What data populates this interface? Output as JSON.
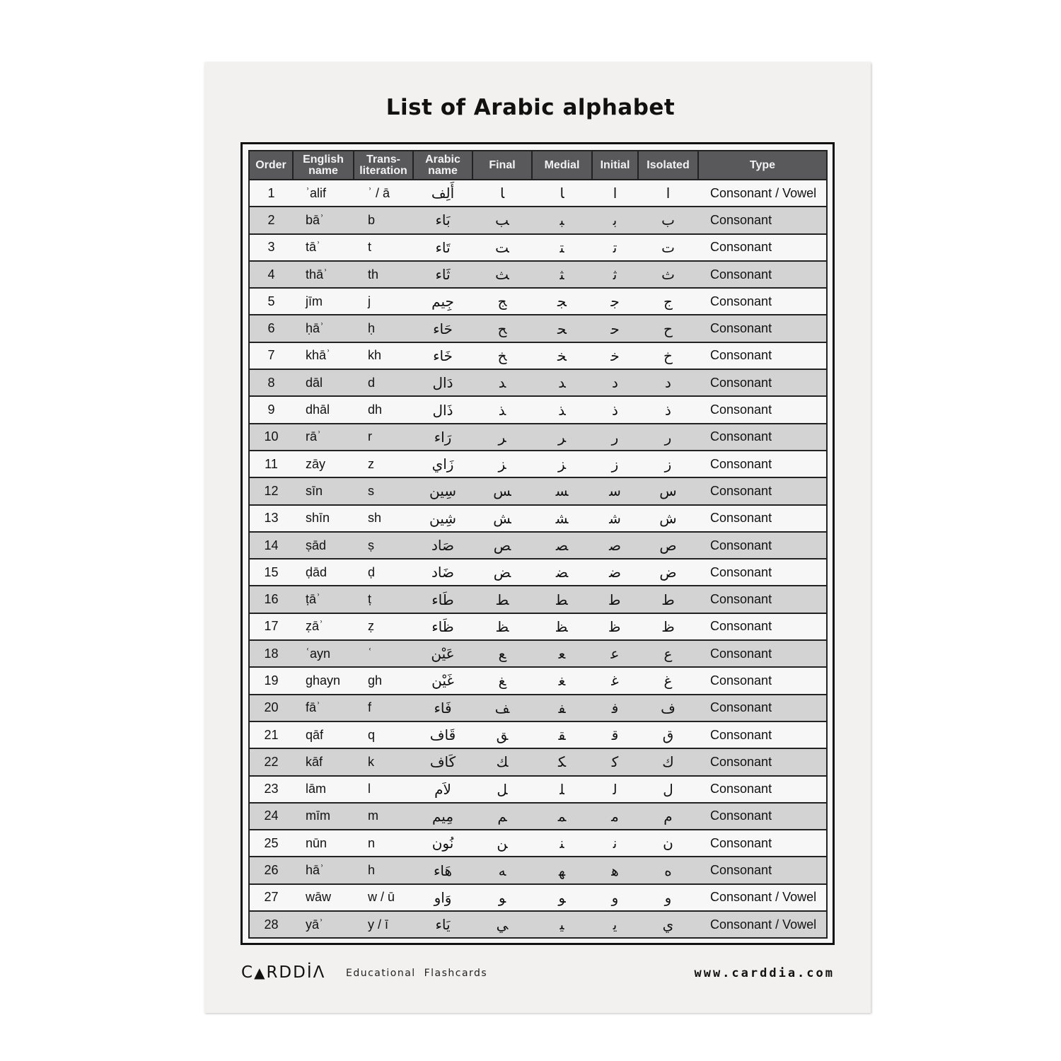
{
  "title": "List of Arabic alphabet",
  "columns": [
    "Order",
    "English name",
    "Trans-literation",
    "Arabic name",
    "Final",
    "Medial",
    "Initial",
    "Isolated",
    "Type"
  ],
  "header_labels": {
    "order": "Order",
    "english": "English\nname",
    "translit": "Trans-\nliteration",
    "arabic": "Arabic\nname",
    "final": "Final",
    "medial": "Medial",
    "initial": "Initial",
    "isolated": "Isolated",
    "type": "Type"
  },
  "rows": [
    {
      "order": "1",
      "english": "ʾalif",
      "translit": "ʾ / ā",
      "arabic": "أَلِف",
      "final": "‍ا",
      "medial": "‍ا",
      "initial": "ا",
      "isolated": "ا",
      "type": "Consonant / Vowel"
    },
    {
      "order": "2",
      "english": "bāʾ",
      "translit": "b",
      "arabic": "بَاء",
      "final": "‍ب",
      "medial": "‍ب‍",
      "initial": "ب‍",
      "isolated": "ب",
      "type": "Consonant"
    },
    {
      "order": "3",
      "english": "tāʾ",
      "translit": "t",
      "arabic": "تَاء",
      "final": "‍ت",
      "medial": "‍ت‍",
      "initial": "ت‍",
      "isolated": "ت",
      "type": "Consonant"
    },
    {
      "order": "4",
      "english": "thāʾ",
      "translit": "th",
      "arabic": "ثَاء",
      "final": "‍ث",
      "medial": "‍ث‍",
      "initial": "ث‍",
      "isolated": "ث",
      "type": "Consonant"
    },
    {
      "order": "5",
      "english": "jīm",
      "translit": "j",
      "arabic": "جِيم",
      "final": "‍ج",
      "medial": "‍ج‍",
      "initial": "ج‍",
      "isolated": "ج",
      "type": "Consonant"
    },
    {
      "order": "6",
      "english": "ḥāʾ",
      "translit": "ḥ",
      "arabic": "حَاء",
      "final": "‍ح",
      "medial": "‍ح‍",
      "initial": "ح‍",
      "isolated": "ح",
      "type": "Consonant"
    },
    {
      "order": "7",
      "english": "khāʾ",
      "translit": "kh",
      "arabic": "خَاء",
      "final": "‍خ",
      "medial": "‍خ‍",
      "initial": "خ‍",
      "isolated": "خ",
      "type": "Consonant"
    },
    {
      "order": "8",
      "english": "dāl",
      "translit": "d",
      "arabic": "دَال",
      "final": "‍د",
      "medial": "‍د",
      "initial": "د",
      "isolated": "د",
      "type": "Consonant"
    },
    {
      "order": "9",
      "english": "dhāl",
      "translit": "dh",
      "arabic": "ذَال",
      "final": "‍ذ",
      "medial": "‍ذ",
      "initial": "ذ",
      "isolated": "ذ",
      "type": "Consonant"
    },
    {
      "order": "10",
      "english": "rāʾ",
      "translit": "r",
      "arabic": "رَاء",
      "final": "‍ر",
      "medial": "‍ر",
      "initial": "ر",
      "isolated": "ر",
      "type": "Consonant"
    },
    {
      "order": "11",
      "english": "zāy",
      "translit": "z",
      "arabic": "زَاي",
      "final": "‍ز",
      "medial": "‍ز",
      "initial": "ز",
      "isolated": "ز",
      "type": "Consonant"
    },
    {
      "order": "12",
      "english": "sīn",
      "translit": "s",
      "arabic": "سِين",
      "final": "‍س",
      "medial": "‍س‍",
      "initial": "س‍",
      "isolated": "س",
      "type": "Consonant"
    },
    {
      "order": "13",
      "english": "shīn",
      "translit": "sh",
      "arabic": "شِين",
      "final": "‍ش",
      "medial": "‍ش‍",
      "initial": "ش‍",
      "isolated": "ش",
      "type": "Consonant"
    },
    {
      "order": "14",
      "english": "ṣād",
      "translit": "ṣ",
      "arabic": "صَاد",
      "final": "‍ص",
      "medial": "‍ص‍",
      "initial": "ص‍",
      "isolated": "ص",
      "type": "Consonant"
    },
    {
      "order": "15",
      "english": "ḍād",
      "translit": "ḍ",
      "arabic": "ضَاد",
      "final": "‍ض",
      "medial": "‍ض‍",
      "initial": "ض‍",
      "isolated": "ض",
      "type": "Consonant"
    },
    {
      "order": "16",
      "english": "ṭāʾ",
      "translit": "ṭ",
      "arabic": "طَاء",
      "final": "‍ط",
      "medial": "‍ط‍",
      "initial": "ط‍",
      "isolated": "ط",
      "type": "Consonant"
    },
    {
      "order": "17",
      "english": "ẓāʾ",
      "translit": "ẓ",
      "arabic": "ظَاء",
      "final": "‍ظ",
      "medial": "‍ظ‍",
      "initial": "ظ‍",
      "isolated": "ظ",
      "type": "Consonant"
    },
    {
      "order": "18",
      "english": "ʿayn",
      "translit": "ʿ",
      "arabic": "عَيْن",
      "final": "‍ع",
      "medial": "‍ع‍",
      "initial": "ع‍",
      "isolated": "ع",
      "type": "Consonant"
    },
    {
      "order": "19",
      "english": "ghayn",
      "translit": "gh",
      "arabic": "غَيْن",
      "final": "‍غ",
      "medial": "‍غ‍",
      "initial": "غ‍",
      "isolated": "غ",
      "type": "Consonant"
    },
    {
      "order": "20",
      "english": "fāʾ",
      "translit": "f",
      "arabic": "فَاء",
      "final": "‍ف",
      "medial": "‍ف‍",
      "initial": "ف‍",
      "isolated": "ف",
      "type": "Consonant"
    },
    {
      "order": "21",
      "english": "qāf",
      "translit": "q",
      "arabic": "قَاف",
      "final": "‍ق",
      "medial": "‍ق‍",
      "initial": "ق‍",
      "isolated": "ق",
      "type": "Consonant"
    },
    {
      "order": "22",
      "english": "kāf",
      "translit": "k",
      "arabic": "كَاف",
      "final": "‍ك",
      "medial": "‍ك‍",
      "initial": "ك‍",
      "isolated": "ك",
      "type": "Consonant"
    },
    {
      "order": "23",
      "english": "lām",
      "translit": "l",
      "arabic": "لاَم",
      "final": "‍ل",
      "medial": "‍ل‍",
      "initial": "ل‍",
      "isolated": "ل",
      "type": "Consonant"
    },
    {
      "order": "24",
      "english": "mīm",
      "translit": "m",
      "arabic": "مِيم",
      "final": "‍م",
      "medial": "‍م‍",
      "initial": "م‍",
      "isolated": "م",
      "type": "Consonant"
    },
    {
      "order": "25",
      "english": "nūn",
      "translit": "n",
      "arabic": "نُون",
      "final": "‍ن",
      "medial": "‍ن‍",
      "initial": "ن‍",
      "isolated": "ن",
      "type": "Consonant"
    },
    {
      "order": "26",
      "english": "hāʾ",
      "translit": "h",
      "arabic": "هَاء",
      "final": "‍ه",
      "medial": "‍ه‍",
      "initial": "ه‍",
      "isolated": "ه",
      "type": "Consonant"
    },
    {
      "order": "27",
      "english": "wāw",
      "translit": "w / ū",
      "arabic": "وَاو",
      "final": "‍و",
      "medial": "‍و",
      "initial": "و",
      "isolated": "و",
      "type": "Consonant / Vowel"
    },
    {
      "order": "28",
      "english": "yāʾ",
      "translit": "y / ī",
      "arabic": "يَاء",
      "final": "‍ي",
      "medial": "‍ي‍",
      "initial": "ي‍",
      "isolated": "ي",
      "type": "Consonant / Vowel"
    }
  ],
  "footer": {
    "logo": "CARDDIA",
    "subtitle": "Educational  Flashcards",
    "url": "www.carddia.com"
  },
  "colors": {
    "header_bg": "#59595b",
    "row_even": "#d3d3d3",
    "row_odd": "#f7f7f7",
    "border": "#222222"
  }
}
